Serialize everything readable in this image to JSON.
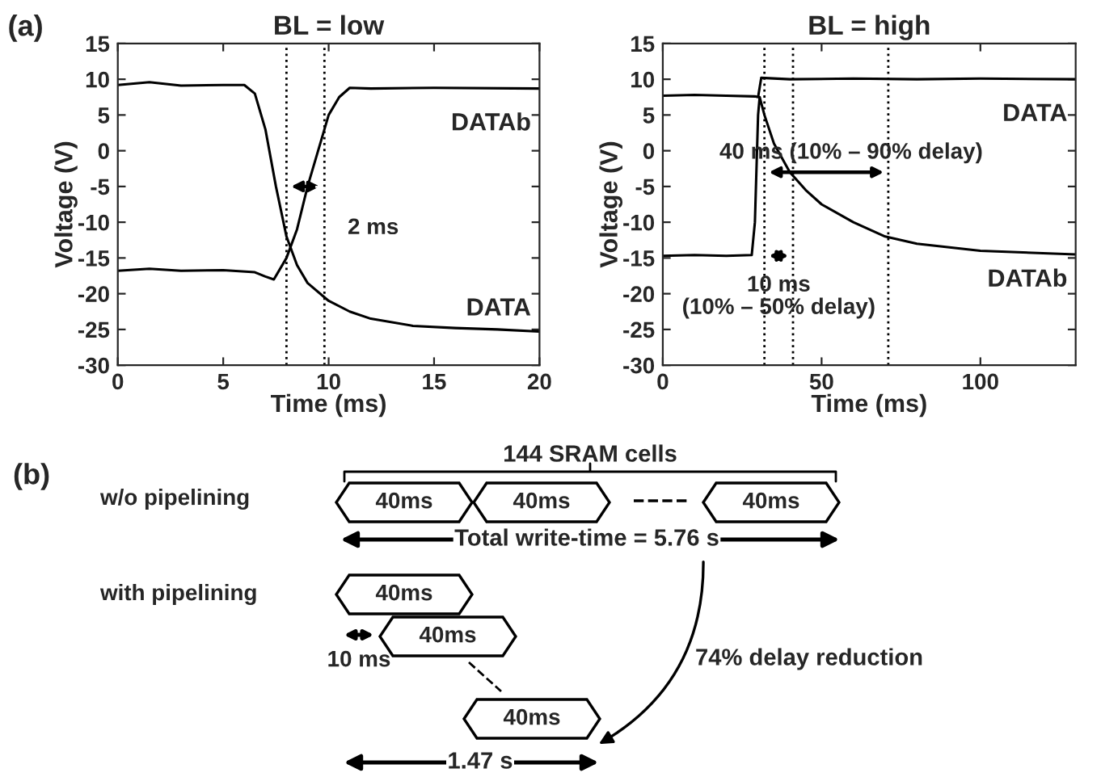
{
  "chart_data": [
    {
      "type": "line",
      "title": "BL = low",
      "xlabel": "Time (ms)",
      "ylabel": "Voltage (V)",
      "xlim": [
        0,
        20
      ],
      "xticks": [
        0,
        5,
        10,
        15,
        20
      ],
      "ylim": [
        -30,
        15
      ],
      "yticks": [
        -30,
        -25,
        -20,
        -15,
        -10,
        -5,
        0,
        5,
        10,
        15
      ],
      "grid": false,
      "legend": false,
      "series": [
        {
          "name": "DATAb",
          "color": "#000000",
          "x": [
            0,
            1.5,
            3,
            5,
            6.5,
            7,
            7.4,
            8,
            8.5,
            9,
            9.5,
            10,
            10.5,
            11,
            12,
            15,
            20
          ],
          "values": [
            -16.8,
            -16.5,
            -16.8,
            -16.7,
            -17,
            -17.6,
            -18,
            -15,
            -11,
            -5,
            0,
            5,
            7.5,
            8.8,
            8.7,
            8.8,
            8.7
          ]
        },
        {
          "name": "DATA",
          "color": "#000000",
          "x": [
            0,
            1.5,
            3,
            5,
            6,
            6.5,
            7,
            7.5,
            8,
            8.5,
            9,
            10,
            11,
            12,
            14,
            16,
            18,
            20
          ],
          "values": [
            9.2,
            9.6,
            9.1,
            9.2,
            9.2,
            8,
            3,
            -5,
            -12,
            -16,
            -18.5,
            -21,
            -22.5,
            -23.5,
            -24.5,
            -24.8,
            -25,
            -25.3
          ]
        }
      ],
      "ref_lines": [
        {
          "axis": "x",
          "value": 8,
          "line_style": "dotted"
        },
        {
          "axis": "x",
          "value": 9.8,
          "line_style": "dotted"
        }
      ],
      "annotations": [
        "(a)",
        {
          "text": "2 ms",
          "x": 8.9,
          "y": -5
        }
      ]
    },
    {
      "type": "line",
      "title": "BL = high",
      "xlabel": "Time (ms)",
      "ylabel": "Voltage (V)",
      "xlim": [
        0,
        130
      ],
      "xticks": [
        0,
        50,
        100
      ],
      "ylim": [
        -30,
        15
      ],
      "yticks": [
        -30,
        -25,
        -20,
        -15,
        -10,
        -5,
        0,
        5,
        10,
        15
      ],
      "grid": false,
      "legend": false,
      "series": [
        {
          "name": "DATA",
          "color": "#000000",
          "x": [
            0,
            10,
            20,
            29,
            30,
            31,
            40,
            60,
            80,
            100,
            130
          ],
          "values": [
            7.7,
            7.8,
            7.7,
            7.6,
            7.5,
            10.2,
            10,
            10.1,
            10,
            10.1,
            10
          ]
        },
        {
          "name": "DATAb",
          "color": "#000000",
          "x": [
            0,
            10,
            20,
            28,
            29,
            30,
            30.5,
            32,
            35,
            40,
            45,
            50,
            60,
            70,
            80,
            100,
            130
          ],
          "values": [
            -14.7,
            -14.6,
            -14.7,
            -14.6,
            -10,
            5,
            7.5,
            5,
            1,
            -3,
            -5.5,
            -7.5,
            -10,
            -12,
            -13,
            -14,
            -14.5
          ]
        }
      ],
      "ref_lines": [
        {
          "axis": "x",
          "value": 32,
          "line_style": "dotted"
        },
        {
          "axis": "x",
          "value": 41,
          "line_style": "dotted"
        },
        {
          "axis": "x",
          "value": 71,
          "line_style": "dotted"
        }
      ],
      "annotations": [
        "40 ms (10% – 90% delay)",
        "10 ms\n(10% – 50% delay)"
      ]
    },
    {
      "type": "other",
      "annotations": [
        "(b)",
        "144 SRAM cells",
        "w/o pipelining",
        "40ms",
        "40ms",
        "40ms",
        "Total write-time = 5.76 s",
        "with pipelining",
        "40ms",
        "40ms",
        "40ms",
        "10 ms",
        "74% delay reduction",
        "1.47 s"
      ]
    }
  ]
}
